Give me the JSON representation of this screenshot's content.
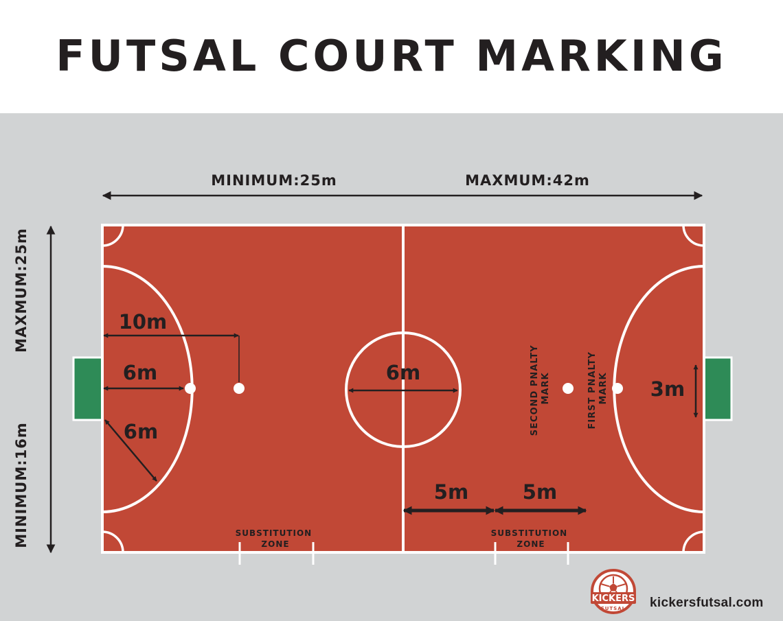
{
  "title": "FUTSAL COURT MARKING",
  "length_labels": {
    "minimum": "MINIMUM:25m",
    "maximum": "MAXMUM:42m"
  },
  "width_labels": {
    "maximum": "MAXMUM:25m",
    "minimum": "MINIMUM:16m"
  },
  "dimensions": {
    "penalty_arc": "10m",
    "first_mark": "6m",
    "arc_radius": "6m",
    "centre_circle": "6m",
    "goal_width": "3m",
    "sub_zone_left": "5m",
    "sub_zone_right": "5m"
  },
  "penalty_marks": {
    "second": [
      "SECOND PNALTY",
      "MARK"
    ],
    "first": [
      "FIRST PNALTY",
      "MARK"
    ]
  },
  "substitution_zone": {
    "left": [
      "SUBSTITUTION",
      "ZONE"
    ],
    "right": [
      "SUBSTITUTION",
      "ZONE"
    ]
  },
  "logo": {
    "top": "KICKERS",
    "bottom": "FUTSAL"
  },
  "website": "kickersfutsal.com",
  "colors": {
    "background": "#d1d3d4",
    "court": "#c14836",
    "lines": "#ffffff",
    "goal": "#2e8b57",
    "text": "#231f20"
  }
}
